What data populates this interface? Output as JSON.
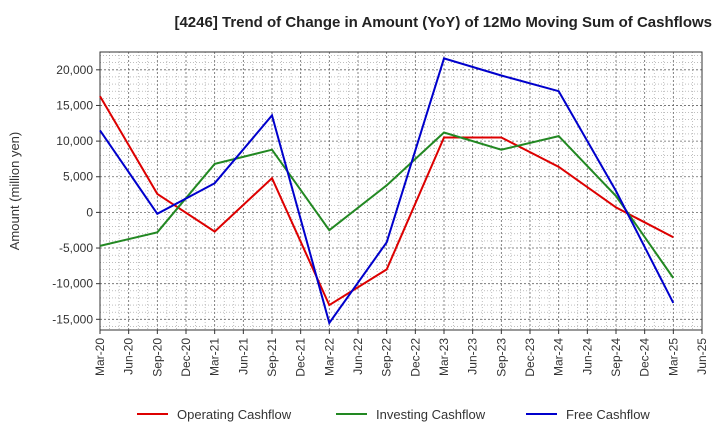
{
  "chart_data": {
    "type": "line",
    "title": "[4246]  Trend of Change in Amount (YoY) of 12Mo Moving Sum of Cashflows",
    "xlabel": "",
    "ylabel": "Amount (million yen)",
    "ylim": [
      -16500,
      22500
    ],
    "yticks": [
      -15000,
      -10000,
      -5000,
      0,
      5000,
      10000,
      15000,
      20000
    ],
    "ytick_labels": [
      "-15,000",
      "-10,000",
      "-5,000",
      "0",
      "5,000",
      "10,000",
      "15,000",
      "20,000"
    ],
    "categories": [
      "Mar-20",
      "Jun-20",
      "Sep-20",
      "Dec-20",
      "Mar-21",
      "Jun-21",
      "Sep-21",
      "Dec-21",
      "Mar-22",
      "Jun-22",
      "Sep-22",
      "Dec-22",
      "Mar-23",
      "Jun-23",
      "Sep-23",
      "Dec-23",
      "Mar-24",
      "Jun-24",
      "Sep-24",
      "Dec-24",
      "Mar-25",
      "Jun-25"
    ],
    "grid": true,
    "legend_position": "bottom",
    "series": [
      {
        "name": "Operating Cashflow",
        "color": "#dd0000",
        "x": [
          "Mar-20",
          "Sep-20",
          "Mar-21",
          "Sep-21",
          "Mar-22",
          "Sep-22",
          "Mar-23",
          "Sep-23",
          "Mar-24",
          "Sep-24",
          "Mar-25"
        ],
        "values": [
          16300,
          2600,
          -2700,
          4800,
          -13000,
          -8000,
          10500,
          10500,
          6400,
          700,
          -3500
        ]
      },
      {
        "name": "Investing Cashflow",
        "color": "#228822",
        "x": [
          "Mar-20",
          "Sep-20",
          "Mar-21",
          "Sep-21",
          "Mar-22",
          "Sep-22",
          "Mar-23",
          "Sep-23",
          "Mar-24",
          "Sep-24",
          "Mar-25"
        ],
        "values": [
          -4700,
          -2800,
          6800,
          8800,
          -2500,
          3800,
          11200,
          8800,
          10700,
          2300,
          -9200
        ]
      },
      {
        "name": "Free Cashflow",
        "color": "#0000cc",
        "x": [
          "Mar-20",
          "Sep-20",
          "Mar-21",
          "Sep-21",
          "Mar-22",
          "Sep-22",
          "Mar-23",
          "Sep-23",
          "Mar-24",
          "Sep-24",
          "Mar-25"
        ],
        "values": [
          11500,
          -200,
          4100,
          13600,
          -15500,
          -4200,
          21600,
          19200,
          17000,
          3000,
          -12700
        ]
      }
    ]
  }
}
